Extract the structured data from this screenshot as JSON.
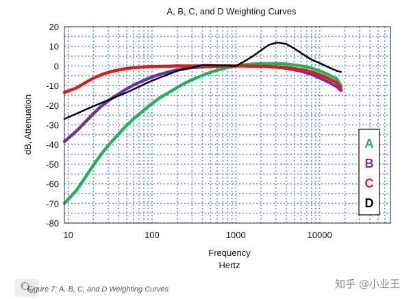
{
  "chart_data": {
    "type": "line",
    "title": "A, B, C, and D Weighting Curves",
    "xlabel_line1": "Frequency",
    "xlabel_line2": "Hertz",
    "ylabel": "dB, Attenuation",
    "xscale": "log",
    "xlim": [
      9,
      70000
    ],
    "ylim": [
      -80,
      20
    ],
    "grid": true,
    "x_ticks": [
      {
        "value": 10,
        "label": "10"
      },
      {
        "value": 100,
        "label": "100"
      },
      {
        "value": 1000,
        "label": "1000"
      },
      {
        "value": 10000,
        "label": "10000"
      }
    ],
    "y_ticks": [
      {
        "value": 20,
        "label": "20"
      },
      {
        "value": 10,
        "label": "10"
      },
      {
        "value": 0,
        "label": "0"
      },
      {
        "value": -10,
        "label": "-10"
      },
      {
        "value": -20,
        "label": "-20"
      },
      {
        "value": -30,
        "label": "-30"
      },
      {
        "value": -40,
        "label": "-40"
      },
      {
        "value": -50,
        "label": "-50"
      },
      {
        "value": -60,
        "label": "-60"
      },
      {
        "value": -70,
        "label": "-70"
      },
      {
        "value": -80,
        "label": "-80"
      }
    ],
    "series": [
      {
        "name": "A",
        "color": "#22b35a",
        "x": [
          9,
          12.5,
          16,
          20,
          25,
          31.5,
          40,
          50,
          63,
          80,
          100,
          125,
          160,
          200,
          250,
          315,
          400,
          500,
          630,
          800,
          1000,
          1250,
          1600,
          2000,
          2500,
          3150,
          4000,
          5000,
          6300,
          8000,
          10000,
          12500,
          16000,
          18000
        ],
        "y": [
          -70,
          -63.4,
          -56.7,
          -50.5,
          -44.7,
          -39.4,
          -34.6,
          -30.2,
          -26.2,
          -22.5,
          -19.1,
          -16.1,
          -13.4,
          -10.9,
          -8.6,
          -6.6,
          -4.8,
          -3.2,
          -1.9,
          -0.8,
          0,
          0.6,
          1.0,
          1.2,
          1.3,
          1.2,
          1.0,
          0.5,
          -0.1,
          -1.1,
          -2.5,
          -4.3,
          -6.6,
          -10
        ]
      },
      {
        "name": "B",
        "color": "#7030a0",
        "x": [
          9,
          12.5,
          16,
          20,
          25,
          31.5,
          40,
          50,
          63,
          80,
          100,
          125,
          160,
          200,
          250,
          315,
          400,
          500,
          630,
          800,
          1000,
          1250,
          1600,
          2000,
          2500,
          3150,
          4000,
          5000,
          6300,
          8000,
          10000,
          12500,
          16000,
          18000
        ],
        "y": [
          -38.5,
          -33.2,
          -28.5,
          -24.2,
          -20.4,
          -17.1,
          -14.2,
          -11.6,
          -9.3,
          -7.4,
          -5.6,
          -4.2,
          -3.0,
          -2.0,
          -1.3,
          -0.8,
          -0.5,
          -0.3,
          -0.1,
          0,
          0,
          0,
          -0.1,
          -0.2,
          -0.4,
          -0.7,
          -1.2,
          -1.9,
          -2.9,
          -4.3,
          -6.1,
          -8.0,
          -10.5,
          -12.5
        ]
      },
      {
        "name": "C",
        "color": "#e01b1b",
        "x": [
          9,
          12.5,
          16,
          20,
          25,
          31.5,
          40,
          50,
          63,
          80,
          100,
          125,
          160,
          200,
          250,
          315,
          400,
          500,
          630,
          800,
          1000,
          1250,
          1600,
          2000,
          2500,
          3150,
          4000,
          5000,
          6300,
          8000,
          10000,
          12500,
          16000,
          18000
        ],
        "y": [
          -13.5,
          -11.2,
          -8.5,
          -6.2,
          -4.4,
          -3.0,
          -2.0,
          -1.3,
          -0.8,
          -0.5,
          -0.3,
          -0.2,
          -0.1,
          0,
          0,
          0,
          0,
          0,
          0,
          0,
          0,
          0,
          -0.1,
          -0.2,
          -0.3,
          -0.5,
          -0.8,
          -1.3,
          -2.0,
          -3.0,
          -4.4,
          -6.2,
          -8.5,
          -11.5
        ]
      },
      {
        "name": "D",
        "color": "#000000",
        "x": [
          9,
          20,
          50,
          100,
          200,
          400,
          500,
          800,
          1000,
          1250,
          1600,
          2000,
          2500,
          3150,
          4000,
          5000,
          6300,
          8000,
          10000,
          12500,
          16000,
          18000
        ],
        "y": [
          -27,
          -20.5,
          -13.5,
          -7.5,
          -2.5,
          0.5,
          0.5,
          0.2,
          0,
          2.2,
          5.0,
          8.0,
          10.8,
          12.0,
          11.2,
          8.8,
          6.0,
          3.2,
          1.5,
          -0.5,
          -2.5,
          -3
        ]
      }
    ],
    "legend": {
      "position": "right",
      "entries": [
        {
          "label": "A",
          "color": "#22b35a"
        },
        {
          "label": "B",
          "color": "#7030a0"
        },
        {
          "label": "C",
          "color": "#e01b1b"
        },
        {
          "label": "D",
          "color": "#000000"
        }
      ]
    }
  },
  "caption": "Figure 7: A, B, C, and D Weighting Curves",
  "watermark": "知乎 @小业王",
  "zoom_icon": "magnifier-plus-icon"
}
